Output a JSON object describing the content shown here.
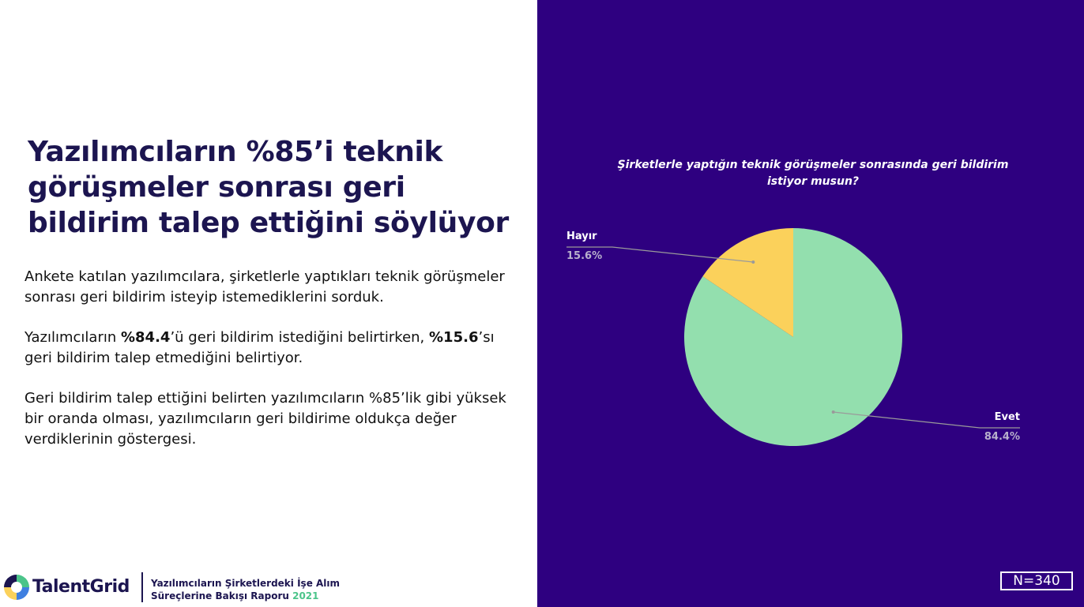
{
  "headline": {
    "line1": "Yazılımcıların %85’i teknik",
    "line2": "görüşmeler sonrası geri",
    "line3": "bildirim talep ettiğini söylüyor"
  },
  "body": {
    "p1": "Ankete katılan yazılımcılara, şirketlerle yaptıkları teknik görüşmeler sonrası geri bildirim isteyip istemediklerini sorduk.",
    "p2_prefix": "Yazılımcıların ",
    "p2_bold1": "%84.4",
    "p2_mid": "’ü geri bildirim istediğini belirtirken, ",
    "p2_bold2": "%15.6",
    "p2_suffix": "’sı geri bildirim talep etmediğini belirtiyor.",
    "p3": "Geri bildirim talep ettiğini belirten yazılımcıların %85’lik gibi yüksek bir oranda olması, yazılımcıların geri bildirime oldukça değer verdiklerinin göstergesi."
  },
  "footer": {
    "logo_text": "TalentGrid",
    "report_line1": "Yazılımcıların Şirketlerdeki İşe Alım",
    "report_line2": "Süreçlerine Bakışı Raporu",
    "report_year": "2021"
  },
  "sample_size": "N=340",
  "colors": {
    "panel_bg": "#2e0080",
    "headline": "#1c1550",
    "evet": "#93dfae",
    "hayir": "#fbd15b",
    "accent_green": "#4bc48a"
  },
  "chart_data": {
    "type": "pie",
    "title_line1": "Şirketlerle yaptığın teknik görüşmeler sonrasında geri bildirim",
    "title_line2": "istiyor musun?",
    "slices": [
      {
        "label": "Evet",
        "value": 84.4,
        "value_label": "84.4%",
        "color": "#93dfae"
      },
      {
        "label": "Hayır",
        "value": 15.6,
        "value_label": "15.6%",
        "color": "#fbd15b"
      }
    ],
    "start_angle_deg": 0,
    "direction": "counterclockwise-from-top"
  }
}
